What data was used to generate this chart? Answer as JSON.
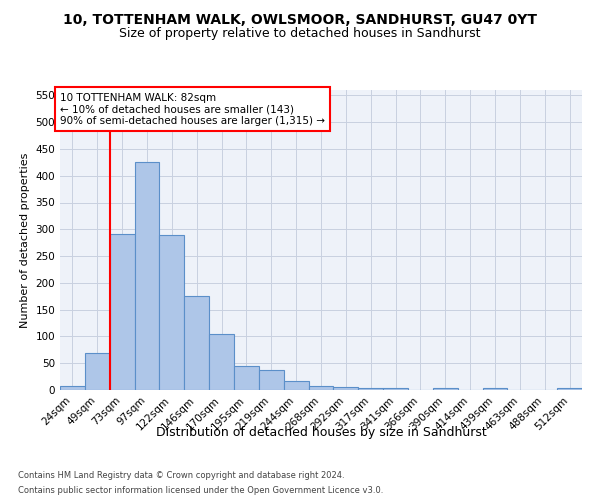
{
  "title": "10, TOTTENHAM WALK, OWLSMOOR, SANDHURST, GU47 0YT",
  "subtitle": "Size of property relative to detached houses in Sandhurst",
  "xlabel": "Distribution of detached houses by size in Sandhurst",
  "ylabel": "Number of detached properties",
  "categories": [
    "24sqm",
    "49sqm",
    "73sqm",
    "97sqm",
    "122sqm",
    "146sqm",
    "170sqm",
    "195sqm",
    "219sqm",
    "244sqm",
    "268sqm",
    "292sqm",
    "317sqm",
    "341sqm",
    "366sqm",
    "390sqm",
    "414sqm",
    "439sqm",
    "463sqm",
    "488sqm",
    "512sqm"
  ],
  "values": [
    8,
    70,
    292,
    425,
    290,
    175,
    105,
    44,
    37,
    17,
    8,
    5,
    3,
    3,
    0,
    3,
    0,
    3,
    0,
    0,
    3
  ],
  "bar_color": "#aec6e8",
  "bar_edge_color": "#5b8fc9",
  "vline_color": "red",
  "vline_x_index": 2,
  "annotation_text": "10 TOTTENHAM WALK: 82sqm\n← 10% of detached houses are smaller (143)\n90% of semi-detached houses are larger (1,315) →",
  "annotation_box_color": "white",
  "annotation_box_edge_color": "red",
  "ylim": [
    0,
    560
  ],
  "yticks": [
    0,
    50,
    100,
    150,
    200,
    250,
    300,
    350,
    400,
    450,
    500,
    550
  ],
  "footer_line1": "Contains HM Land Registry data © Crown copyright and database right 2024.",
  "footer_line2": "Contains public sector information licensed under the Open Government Licence v3.0.",
  "bg_color": "#eef2f9",
  "grid_color": "#c8d0e0",
  "title_fontsize": 10,
  "subtitle_fontsize": 9,
  "ylabel_fontsize": 8,
  "xlabel_fontsize": 9,
  "tick_fontsize": 7.5,
  "annotation_fontsize": 7.5,
  "footer_fontsize": 6
}
